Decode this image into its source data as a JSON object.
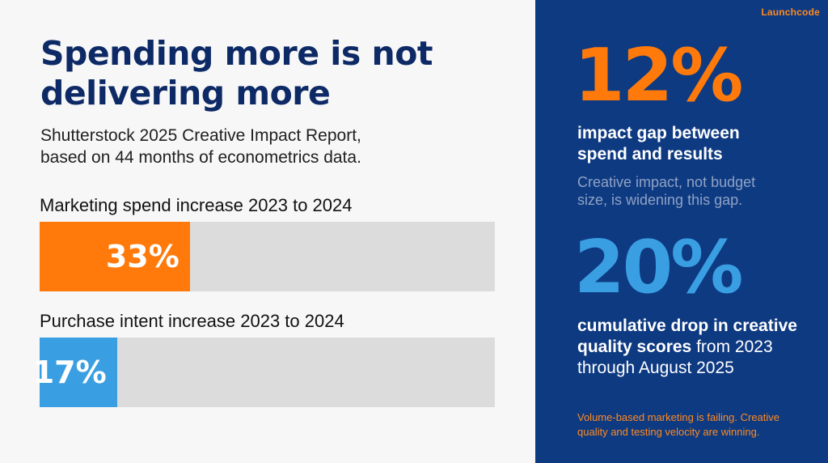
{
  "brand": "Launchcode",
  "title": "Spending more is not delivering more",
  "subtitle_line1": "Shutterstock 2025 Creative Impact Report,",
  "subtitle_line2": "based on 44 months of econometrics data.",
  "stats": {
    "gap_value": "12%",
    "gap_head_line1": "impact gap between",
    "gap_head_line2": "spend and results",
    "gap_note_line1": "Creative impact, not budget",
    "gap_note_line2": "size, is widening this gap.",
    "drop_value": "20%",
    "drop_bold_line1": "cumulative drop in creative",
    "drop_bold_line2": "quality scores",
    "drop_rest_line2": " from 2023",
    "drop_line3": "through August 2025"
  },
  "footer_line1": "Volume-based marketing is failing. Creative",
  "footer_line2": "quality and testing velocity are winning.",
  "colors": {
    "orange": "#ff7a0a",
    "blue": "#3a9fe2",
    "navy": "#0e3a82",
    "track": "#dcdcdc"
  },
  "chart_data": {
    "type": "bar",
    "orientation": "horizontal",
    "categories": [
      "Marketing spend increase 2023 to 2024",
      "Purchase intent increase 2023 to 2024"
    ],
    "values": [
      33,
      17
    ],
    "value_labels": [
      "33%",
      "17%"
    ],
    "xlim": [
      0,
      100
    ],
    "bar_colors": [
      "#ff7a0a",
      "#3a9fe2"
    ]
  }
}
